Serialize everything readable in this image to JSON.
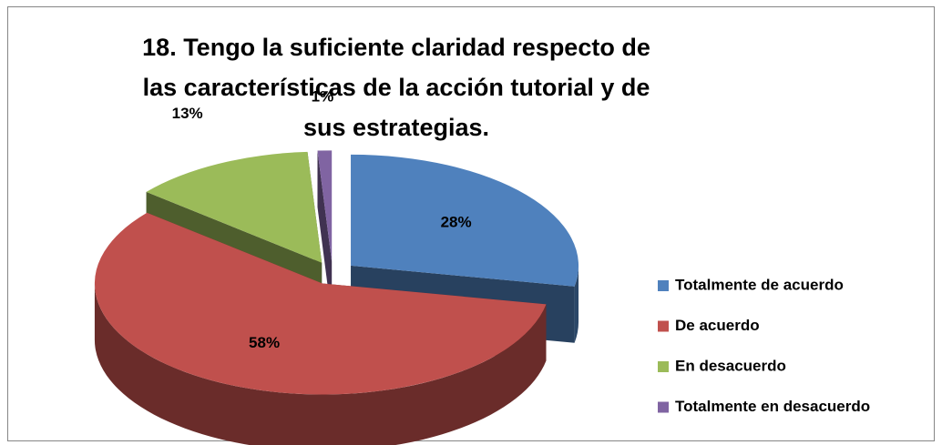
{
  "chart_data": {
    "type": "pie",
    "title": "18. Tengo la suficiente claridad respecto de las características de la acción tutorial y de sus estrategias.",
    "categories": [
      "Totalmente de acuerdo",
      "De acuerdo",
      "En desacuerdo",
      "Totalmente en desacuerdo"
    ],
    "values": [
      28,
      58,
      13,
      1
    ],
    "value_labels": [
      "28%",
      "58%",
      "13%",
      "1%"
    ],
    "colors": [
      "#4f81bd",
      "#c0504d",
      "#9bbb59",
      "#8064a2"
    ],
    "legend": "right"
  }
}
